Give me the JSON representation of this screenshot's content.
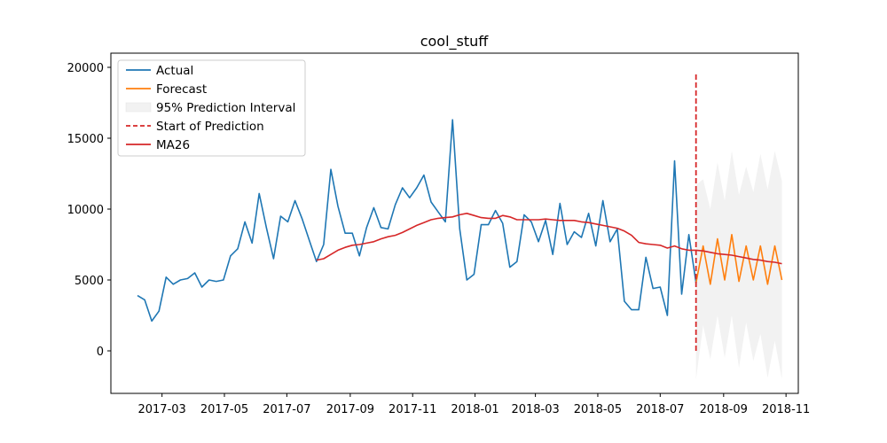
{
  "chart_data": {
    "type": "line",
    "title": "cool_stuff",
    "xlabel": "",
    "ylabel": "",
    "x_axis_kind": "date",
    "xlim": [
      "2017-01-10",
      "2018-11-13"
    ],
    "ylim": [
      -3000,
      21000
    ],
    "x_ticks": [
      {
        "date": "2017-03-01",
        "label": "2017-03"
      },
      {
        "date": "2017-05-01",
        "label": "2017-05"
      },
      {
        "date": "2017-07-01",
        "label": "2017-07"
      },
      {
        "date": "2017-09-01",
        "label": "2017-09"
      },
      {
        "date": "2017-11-01",
        "label": "2017-11"
      },
      {
        "date": "2018-01-01",
        "label": "2018-01"
      },
      {
        "date": "2018-03-01",
        "label": "2018-03"
      },
      {
        "date": "2018-05-01",
        "label": "2018-05"
      },
      {
        "date": "2018-07-01",
        "label": "2018-07"
      },
      {
        "date": "2018-09-01",
        "label": "2018-09"
      },
      {
        "date": "2018-11-01",
        "label": "2018-11"
      }
    ],
    "y_ticks": [
      0,
      5000,
      10000,
      15000,
      20000
    ],
    "grid": false,
    "legend_position": "top-left",
    "legend": [
      "Actual",
      "Forecast",
      "95% Prediction Interval",
      "Start of Prediction",
      "MA26"
    ],
    "colors": {
      "actual": "#1f77b4",
      "forecast": "#ff7f0e",
      "interval": "#d3d3d3",
      "start": "#d62728",
      "ma": "#d62728"
    },
    "actual": {
      "name": "Actual",
      "points": [
        [
          "2017-02-05",
          3900
        ],
        [
          "2017-02-12",
          3600
        ],
        [
          "2017-02-19",
          2100
        ],
        [
          "2017-02-26",
          2800
        ],
        [
          "2017-03-05",
          5200
        ],
        [
          "2017-03-12",
          4700
        ],
        [
          "2017-03-19",
          5000
        ],
        [
          "2017-03-26",
          5100
        ],
        [
          "2017-04-02",
          5500
        ],
        [
          "2017-04-09",
          4500
        ],
        [
          "2017-04-16",
          5000
        ],
        [
          "2017-04-23",
          4900
        ],
        [
          "2017-04-30",
          5000
        ],
        [
          "2017-05-07",
          6700
        ],
        [
          "2017-05-14",
          7200
        ],
        [
          "2017-05-21",
          9100
        ],
        [
          "2017-05-28",
          7600
        ],
        [
          "2017-06-04",
          11100
        ],
        [
          "2017-06-11",
          8700
        ],
        [
          "2017-06-18",
          6500
        ],
        [
          "2017-06-25",
          9500
        ],
        [
          "2017-07-02",
          9100
        ],
        [
          "2017-07-09",
          10600
        ],
        [
          "2017-07-16",
          9300
        ],
        [
          "2017-07-23",
          7800
        ],
        [
          "2017-07-30",
          6300
        ],
        [
          "2017-08-06",
          7500
        ],
        [
          "2017-08-13",
          12800
        ],
        [
          "2017-08-20",
          10200
        ],
        [
          "2017-08-27",
          8300
        ],
        [
          "2017-09-03",
          8300
        ],
        [
          "2017-09-10",
          6700
        ],
        [
          "2017-09-17",
          8700
        ],
        [
          "2017-09-24",
          10100
        ],
        [
          "2017-10-01",
          8700
        ],
        [
          "2017-10-08",
          8600
        ],
        [
          "2017-10-15",
          10300
        ],
        [
          "2017-10-22",
          11500
        ],
        [
          "2017-10-29",
          10800
        ],
        [
          "2017-11-05",
          11500
        ],
        [
          "2017-11-12",
          12400
        ],
        [
          "2017-11-19",
          10500
        ],
        [
          "2017-11-26",
          9800
        ],
        [
          "2017-12-03",
          9100
        ],
        [
          "2017-12-10",
          16300
        ],
        [
          "2017-12-17",
          8600
        ],
        [
          "2017-12-24",
          5000
        ],
        [
          "2017-12-31",
          5400
        ],
        [
          "2018-01-07",
          8900
        ],
        [
          "2018-01-14",
          8900
        ],
        [
          "2018-01-21",
          9900
        ],
        [
          "2018-01-28",
          9000
        ],
        [
          "2018-02-04",
          5900
        ],
        [
          "2018-02-11",
          6300
        ],
        [
          "2018-02-18",
          9600
        ],
        [
          "2018-02-25",
          9100
        ],
        [
          "2018-03-04",
          7700
        ],
        [
          "2018-03-11",
          9200
        ],
        [
          "2018-03-18",
          6800
        ],
        [
          "2018-03-25",
          10400
        ],
        [
          "2018-04-01",
          7500
        ],
        [
          "2018-04-08",
          8400
        ],
        [
          "2018-04-15",
          8000
        ],
        [
          "2018-04-22",
          9700
        ],
        [
          "2018-04-29",
          7400
        ],
        [
          "2018-05-06",
          10600
        ],
        [
          "2018-05-13",
          7700
        ],
        [
          "2018-05-20",
          8600
        ],
        [
          "2018-05-27",
          3500
        ],
        [
          "2018-06-03",
          2900
        ],
        [
          "2018-06-10",
          2900
        ],
        [
          "2018-06-17",
          6600
        ],
        [
          "2018-06-24",
          4400
        ],
        [
          "2018-07-01",
          4500
        ],
        [
          "2018-07-08",
          2500
        ],
        [
          "2018-07-15",
          13400
        ],
        [
          "2018-07-22",
          4000
        ],
        [
          "2018-07-29",
          8200
        ],
        [
          "2018-08-05",
          4800
        ]
      ]
    },
    "forecast": {
      "name": "Forecast",
      "points": [
        [
          "2018-08-05",
          4800
        ],
        [
          "2018-08-12",
          7400
        ],
        [
          "2018-08-19",
          4700
        ],
        [
          "2018-08-26",
          7900
        ],
        [
          "2018-09-02",
          5000
        ],
        [
          "2018-09-09",
          8200
        ],
        [
          "2018-09-16",
          4900
        ],
        [
          "2018-09-23",
          7400
        ],
        [
          "2018-09-30",
          5000
        ],
        [
          "2018-10-07",
          7400
        ],
        [
          "2018-10-14",
          4700
        ],
        [
          "2018-10-21",
          7400
        ],
        [
          "2018-10-28",
          5000
        ]
      ]
    },
    "interval": {
      "name": "95% Prediction Interval",
      "points": [
        [
          "2018-08-05",
          -2000,
          11700
        ],
        [
          "2018-08-12",
          1800,
          12100
        ],
        [
          "2018-08-19",
          -600,
          10000
        ],
        [
          "2018-08-26",
          2500,
          13300
        ],
        [
          "2018-09-02",
          -500,
          10600
        ],
        [
          "2018-09-09",
          2500,
          14100
        ],
        [
          "2018-09-16",
          -1200,
          11000
        ],
        [
          "2018-09-23",
          2000,
          13000
        ],
        [
          "2018-09-30",
          -700,
          11200
        ],
        [
          "2018-10-07",
          1200,
          13900
        ],
        [
          "2018-10-14",
          -1900,
          11400
        ],
        [
          "2018-10-21",
          700,
          14100
        ],
        [
          "2018-10-28",
          -2000,
          12000
        ]
      ]
    },
    "start_of_prediction": {
      "name": "Start of Prediction",
      "date": "2018-08-05",
      "y_range": [
        0,
        19500
      ]
    },
    "ma": {
      "name": "MA26",
      "points": [
        [
          "2017-07-30",
          6400
        ],
        [
          "2017-08-06",
          6500
        ],
        [
          "2017-08-13",
          6800
        ],
        [
          "2017-08-20",
          7100
        ],
        [
          "2017-08-27",
          7300
        ],
        [
          "2017-09-03",
          7450
        ],
        [
          "2017-09-10",
          7500
        ],
        [
          "2017-09-17",
          7600
        ],
        [
          "2017-09-24",
          7700
        ],
        [
          "2017-10-01",
          7900
        ],
        [
          "2017-10-08",
          8050
        ],
        [
          "2017-10-15",
          8150
        ],
        [
          "2017-10-22",
          8350
        ],
        [
          "2017-10-29",
          8600
        ],
        [
          "2017-11-05",
          8850
        ],
        [
          "2017-11-12",
          9050
        ],
        [
          "2017-11-19",
          9250
        ],
        [
          "2017-11-26",
          9350
        ],
        [
          "2017-12-03",
          9400
        ],
        [
          "2017-12-10",
          9450
        ],
        [
          "2017-12-17",
          9600
        ],
        [
          "2017-12-24",
          9700
        ],
        [
          "2017-12-31",
          9550
        ],
        [
          "2018-01-07",
          9400
        ],
        [
          "2018-01-14",
          9350
        ],
        [
          "2018-01-21",
          9350
        ],
        [
          "2018-01-28",
          9550
        ],
        [
          "2018-02-04",
          9450
        ],
        [
          "2018-02-11",
          9250
        ],
        [
          "2018-02-18",
          9250
        ],
        [
          "2018-02-25",
          9250
        ],
        [
          "2018-03-04",
          9250
        ],
        [
          "2018-03-11",
          9300
        ],
        [
          "2018-03-18",
          9250
        ],
        [
          "2018-03-25",
          9200
        ],
        [
          "2018-04-01",
          9200
        ],
        [
          "2018-04-08",
          9200
        ],
        [
          "2018-04-15",
          9100
        ],
        [
          "2018-04-22",
          9050
        ],
        [
          "2018-04-29",
          8950
        ],
        [
          "2018-05-06",
          8850
        ],
        [
          "2018-05-13",
          8750
        ],
        [
          "2018-05-20",
          8650
        ],
        [
          "2018-05-27",
          8450
        ],
        [
          "2018-06-03",
          8150
        ],
        [
          "2018-06-10",
          7650
        ],
        [
          "2018-06-17",
          7550
        ],
        [
          "2018-06-24",
          7500
        ],
        [
          "2018-07-01",
          7450
        ],
        [
          "2018-07-08",
          7250
        ],
        [
          "2018-07-15",
          7400
        ],
        [
          "2018-07-22",
          7200
        ],
        [
          "2018-07-29",
          7100
        ],
        [
          "2018-08-05",
          7100
        ],
        [
          "2018-08-12",
          7050
        ],
        [
          "2018-08-19",
          6950
        ],
        [
          "2018-08-26",
          6850
        ],
        [
          "2018-09-02",
          6800
        ],
        [
          "2018-09-09",
          6750
        ],
        [
          "2018-09-16",
          6650
        ],
        [
          "2018-09-23",
          6550
        ],
        [
          "2018-09-30",
          6450
        ],
        [
          "2018-10-07",
          6400
        ],
        [
          "2018-10-14",
          6300
        ],
        [
          "2018-10-21",
          6250
        ],
        [
          "2018-10-28",
          6150
        ]
      ]
    }
  }
}
